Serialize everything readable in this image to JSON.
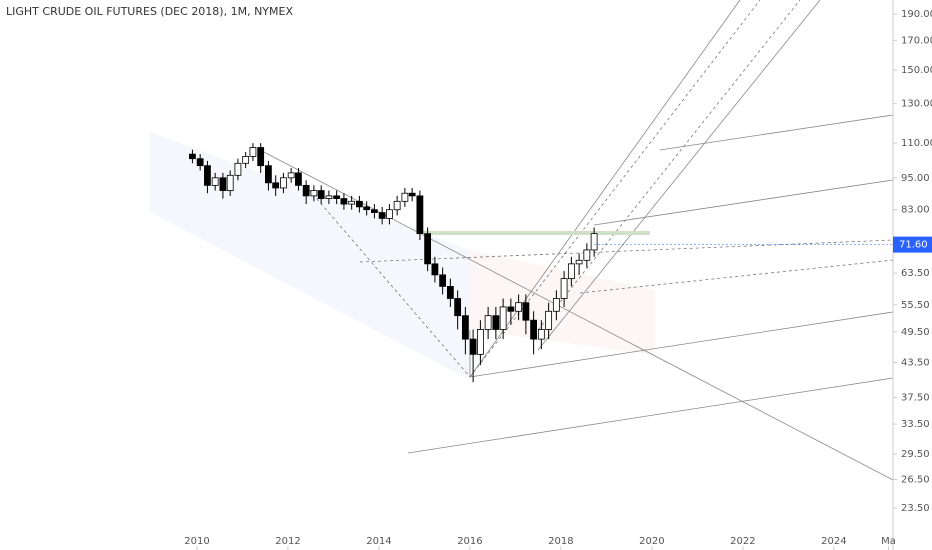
{
  "chart_data": {
    "type": "candlestick",
    "title": "LIGHT CRUDE OIL FUTURES (DEC 2018), 1M, NYMEX",
    "log_scale": true,
    "xlim": [
      2005.67,
      2025.3
    ],
    "ylim": [
      21.4,
      201.6
    ],
    "xticks": [
      2010,
      2012,
      2014,
      2016,
      2018,
      2020,
      2022,
      2024,
      {
        "value": 2025.2,
        "label": "Ma"
      }
    ],
    "yticks": [
      {
        "value": 190,
        "label": "190.00"
      },
      {
        "value": 170,
        "label": "170.00"
      },
      {
        "value": 150,
        "label": "150.00"
      },
      {
        "value": 130,
        "label": "130.00"
      },
      {
        "value": 110,
        "label": "110.00"
      },
      {
        "value": 95,
        "label": "95.00"
      },
      {
        "value": 83,
        "label": "83.00"
      },
      {
        "value": 63.5,
        "label": "63.50"
      },
      {
        "value": 55.5,
        "label": "55.50"
      },
      {
        "value": 49.5,
        "label": "49.50"
      },
      {
        "value": 43.5,
        "label": "43.50"
      },
      {
        "value": 37.5,
        "label": "37.50"
      },
      {
        "value": 33.5,
        "label": "33.50"
      },
      {
        "value": 29.5,
        "label": "29.50"
      },
      {
        "value": 26.5,
        "label": "26.50"
      },
      {
        "value": 23.5,
        "label": "23.50"
      }
    ],
    "price_marker": {
      "value": 71.6,
      "label": "71.60",
      "color": "#2962ff"
    },
    "up_color": "#ffffff",
    "down_color": "#000000",
    "x": [
      2009.9,
      2010.07,
      2010.23,
      2010.4,
      2010.57,
      2010.73,
      2010.9,
      2011.07,
      2011.23,
      2011.4,
      2011.57,
      2011.73,
      2011.9,
      2012.07,
      2012.23,
      2012.4,
      2012.57,
      2012.73,
      2012.9,
      2013.07,
      2013.23,
      2013.4,
      2013.57,
      2013.73,
      2013.9,
      2014.07,
      2014.23,
      2014.4,
      2014.57,
      2014.73,
      2014.9,
      2015.07,
      2015.23,
      2015.4,
      2015.57,
      2015.73,
      2015.9,
      2016.07,
      2016.23,
      2016.4,
      2016.57,
      2016.73,
      2016.9,
      2017.07,
      2017.23,
      2017.4,
      2017.57,
      2017.73,
      2017.9,
      2018.07,
      2018.23,
      2018.4,
      2018.57,
      2018.73
    ],
    "open": [
      105,
      103,
      100,
      92,
      95,
      90,
      96,
      101,
      104,
      108,
      100,
      93,
      91,
      95,
      97,
      92,
      88,
      90,
      87,
      88,
      87,
      85,
      86,
      84,
      83,
      82,
      80,
      83,
      86,
      89,
      88,
      75,
      66,
      63,
      60,
      57,
      53,
      48,
      45,
      50,
      53,
      50,
      55,
      54,
      56,
      52,
      48,
      50,
      54,
      57,
      62,
      66,
      67,
      70
    ],
    "high": [
      107,
      105,
      102,
      97,
      97,
      98,
      103,
      106,
      110,
      110,
      102,
      96,
      97,
      99,
      99,
      94,
      92,
      92,
      90,
      90,
      89,
      88,
      88,
      86,
      85,
      84,
      85,
      88,
      91,
      91,
      90,
      77,
      68,
      65,
      62,
      59,
      55,
      50,
      52,
      55,
      55,
      57,
      57,
      58,
      58,
      54,
      52,
      56,
      59,
      64,
      68,
      69,
      72,
      77
    ],
    "low": [
      101,
      98,
      89,
      90,
      87,
      88,
      94,
      99,
      102,
      97,
      90,
      88,
      89,
      93,
      90,
      85,
      86,
      85,
      85,
      85,
      83,
      83,
      82,
      81,
      80,
      78,
      78,
      81,
      84,
      86,
      73,
      64,
      61,
      58,
      55,
      50,
      45,
      40,
      43,
      48,
      48,
      48,
      51,
      52,
      49,
      45,
      46,
      48,
      52,
      55,
      60,
      63,
      65,
      68
    ],
    "close": [
      103,
      100,
      92,
      95,
      90,
      96,
      101,
      104,
      108,
      100,
      93,
      91,
      95,
      97,
      92,
      88,
      90,
      87,
      88,
      87,
      85,
      86,
      84,
      83,
      82,
      80,
      83,
      86,
      89,
      88,
      75,
      66,
      63,
      60,
      57,
      53,
      48,
      45,
      50,
      53,
      50,
      55,
      54,
      56,
      52,
      48,
      50,
      54,
      57,
      62,
      66,
      67,
      70,
      75
    ]
  }
}
